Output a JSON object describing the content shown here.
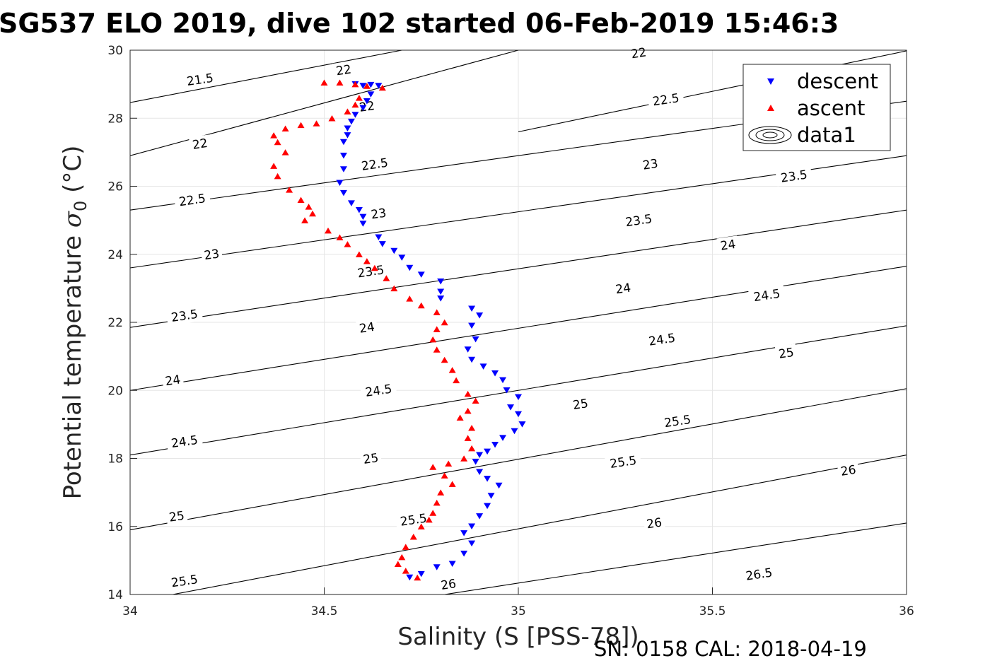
{
  "chart_data": {
    "type": "scatter",
    "title": "SG537 ELO 2019, dive 102 started 06-Feb-2019 15:46:3",
    "xlabel": "Salinity (S [PSS-78])",
    "ylabel_main": "Potential temperature ",
    "ylabel_sigma": "σ",
    "ylabel_sub": "0",
    "ylabel_unit": " (°C)",
    "footer": "SN: 0158  CAL: 2018-04-19",
    "xlim": [
      34,
      36
    ],
    "ylim": [
      14,
      30
    ],
    "x_ticks": [
      "34",
      "34.5",
      "35",
      "35.5",
      "36"
    ],
    "y_ticks": [
      "14",
      "16",
      "18",
      "20",
      "22",
      "24",
      "26",
      "28",
      "30"
    ],
    "grid": true,
    "legend_position": "top-right",
    "legend": [
      "descent",
      "ascent",
      "data1"
    ],
    "series": [
      {
        "name": "descent",
        "marker": "triangle-down",
        "color": "#0000ff",
        "points": [
          [
            34.58,
            29.0
          ],
          [
            34.6,
            28.95
          ],
          [
            34.62,
            28.98
          ],
          [
            34.64,
            28.95
          ],
          [
            34.62,
            28.7
          ],
          [
            34.61,
            28.5
          ],
          [
            34.6,
            28.3
          ],
          [
            34.58,
            28.1
          ],
          [
            34.57,
            27.9
          ],
          [
            34.56,
            27.7
          ],
          [
            34.56,
            27.5
          ],
          [
            34.55,
            27.3
          ],
          [
            34.55,
            26.9
          ],
          [
            34.55,
            26.5
          ],
          [
            34.54,
            26.1
          ],
          [
            34.55,
            25.8
          ],
          [
            34.57,
            25.5
          ],
          [
            34.59,
            25.3
          ],
          [
            34.6,
            25.1
          ],
          [
            34.6,
            24.9
          ],
          [
            34.64,
            24.5
          ],
          [
            34.65,
            24.3
          ],
          [
            34.68,
            24.1
          ],
          [
            34.7,
            23.9
          ],
          [
            34.72,
            23.6
          ],
          [
            34.75,
            23.4
          ],
          [
            34.8,
            23.2
          ],
          [
            34.8,
            22.9
          ],
          [
            34.8,
            22.7
          ],
          [
            34.88,
            22.4
          ],
          [
            34.9,
            22.2
          ],
          [
            34.88,
            21.9
          ],
          [
            34.89,
            21.5
          ],
          [
            34.87,
            21.2
          ],
          [
            34.88,
            20.9
          ],
          [
            34.91,
            20.7
          ],
          [
            34.94,
            20.5
          ],
          [
            34.96,
            20.3
          ],
          [
            34.97,
            20.0
          ],
          [
            35.0,
            19.8
          ],
          [
            34.98,
            19.5
          ],
          [
            35.0,
            19.3
          ],
          [
            35.01,
            19.0
          ],
          [
            34.99,
            18.8
          ],
          [
            34.96,
            18.6
          ],
          [
            34.94,
            18.4
          ],
          [
            34.92,
            18.2
          ],
          [
            34.9,
            18.1
          ],
          [
            34.89,
            17.9
          ],
          [
            34.9,
            17.6
          ],
          [
            34.92,
            17.4
          ],
          [
            34.95,
            17.2
          ],
          [
            34.93,
            16.9
          ],
          [
            34.92,
            16.6
          ],
          [
            34.9,
            16.3
          ],
          [
            34.88,
            16.0
          ],
          [
            34.86,
            15.8
          ],
          [
            34.88,
            15.5
          ],
          [
            34.86,
            15.2
          ],
          [
            34.83,
            14.9
          ],
          [
            34.79,
            14.8
          ],
          [
            34.75,
            14.6
          ],
          [
            34.72,
            14.5
          ]
        ]
      },
      {
        "name": "ascent",
        "marker": "triangle-up",
        "color": "#ff0000",
        "points": [
          [
            34.5,
            29.05
          ],
          [
            34.54,
            29.05
          ],
          [
            34.58,
            29.0
          ],
          [
            34.61,
            28.95
          ],
          [
            34.65,
            28.9
          ],
          [
            34.59,
            28.6
          ],
          [
            34.58,
            28.4
          ],
          [
            34.56,
            28.2
          ],
          [
            34.52,
            28.0
          ],
          [
            34.48,
            27.85
          ],
          [
            34.44,
            27.8
          ],
          [
            34.4,
            27.7
          ],
          [
            34.37,
            27.5
          ],
          [
            34.38,
            27.3
          ],
          [
            34.4,
            27.0
          ],
          [
            34.37,
            26.6
          ],
          [
            34.38,
            26.3
          ],
          [
            34.41,
            25.9
          ],
          [
            34.44,
            25.6
          ],
          [
            34.46,
            25.4
          ],
          [
            34.47,
            25.2
          ],
          [
            34.45,
            25.0
          ],
          [
            34.51,
            24.7
          ],
          [
            34.54,
            24.5
          ],
          [
            34.56,
            24.3
          ],
          [
            34.59,
            24.0
          ],
          [
            34.61,
            23.8
          ],
          [
            34.63,
            23.6
          ],
          [
            34.66,
            23.3
          ],
          [
            34.68,
            23.0
          ],
          [
            34.72,
            22.7
          ],
          [
            34.75,
            22.5
          ],
          [
            34.79,
            22.3
          ],
          [
            34.81,
            22.0
          ],
          [
            34.79,
            21.8
          ],
          [
            34.78,
            21.5
          ],
          [
            34.79,
            21.2
          ],
          [
            34.81,
            20.9
          ],
          [
            34.83,
            20.6
          ],
          [
            34.84,
            20.3
          ],
          [
            34.87,
            19.9
          ],
          [
            34.89,
            19.7
          ],
          [
            34.87,
            19.4
          ],
          [
            34.85,
            19.2
          ],
          [
            34.88,
            18.9
          ],
          [
            34.87,
            18.6
          ],
          [
            34.88,
            18.3
          ],
          [
            34.86,
            18.0
          ],
          [
            34.82,
            17.85
          ],
          [
            34.78,
            17.75
          ],
          [
            34.81,
            17.5
          ],
          [
            34.83,
            17.25
          ],
          [
            34.8,
            17.0
          ],
          [
            34.79,
            16.7
          ],
          [
            34.78,
            16.4
          ],
          [
            34.77,
            16.2
          ],
          [
            34.75,
            16.0
          ],
          [
            34.73,
            15.7
          ],
          [
            34.71,
            15.4
          ],
          [
            34.7,
            15.1
          ],
          [
            34.69,
            14.9
          ],
          [
            34.71,
            14.7
          ],
          [
            34.74,
            14.5
          ]
        ]
      }
    ],
    "density_contours": {
      "name": "data1",
      "levels": [
        "21.5",
        "22",
        "22.5",
        "23",
        "23.5",
        "24",
        "24.5",
        "25",
        "25.5",
        "26",
        "26.5"
      ],
      "lines": [
        {
          "level": "21.5",
          "x": [
            34.0,
            34.7
          ],
          "y": [
            28.46,
            30.0
          ]
        },
        {
          "level": "22",
          "x": [
            34.0,
            35.0
          ],
          "y": [
            26.9,
            30.0
          ]
        },
        {
          "level": "22",
          "x": [
            35.0,
            36.0
          ],
          "y": [
            27.6,
            29.98
          ]
        },
        {
          "level": "22.5",
          "x": [
            34.0,
            36.0
          ],
          "y": [
            25.3,
            28.5
          ]
        },
        {
          "level": "23",
          "x": [
            34.0,
            36.0
          ],
          "y": [
            23.6,
            26.9
          ]
        },
        {
          "level": "23.5",
          "x": [
            34.0,
            36.0
          ],
          "y": [
            21.85,
            25.3
          ]
        },
        {
          "level": "24",
          "x": [
            34.0,
            36.0
          ],
          "y": [
            20.0,
            23.65
          ]
        },
        {
          "level": "24.5",
          "x": [
            34.0,
            36.0
          ],
          "y": [
            18.1,
            21.9
          ]
        },
        {
          "level": "25",
          "x": [
            34.0,
            36.0
          ],
          "y": [
            15.9,
            20.05
          ]
        },
        {
          "level": "25.5",
          "x": [
            34.11,
            36.0
          ],
          "y": [
            14.0,
            18.1
          ]
        },
        {
          "level": "26",
          "x": [
            34.81,
            36.0
          ],
          "y": [
            14.0,
            16.1
          ]
        }
      ],
      "labels": [
        {
          "text": "21.5",
          "x": 34.18,
          "y": 29.14
        },
        {
          "text": "22",
          "x": 34.55,
          "y": 29.42
        },
        {
          "text": "22",
          "x": 35.31,
          "y": 29.92
        },
        {
          "text": "22",
          "x": 34.61,
          "y": 28.35
        },
        {
          "text": "22",
          "x": 34.18,
          "y": 27.25
        },
        {
          "text": "22.5",
          "x": 34.63,
          "y": 26.65
        },
        {
          "text": "22.5",
          "x": 35.38,
          "y": 28.55
        },
        {
          "text": "22.5",
          "x": 34.16,
          "y": 25.6
        },
        {
          "text": "23",
          "x": 34.64,
          "y": 25.2
        },
        {
          "text": "23",
          "x": 35.34,
          "y": 26.65
        },
        {
          "text": "23",
          "x": 34.21,
          "y": 24.0
        },
        {
          "text": "23.5",
          "x": 35.31,
          "y": 25.0
        },
        {
          "text": "23.5",
          "x": 35.71,
          "y": 26.3
        },
        {
          "text": "23.5",
          "x": 34.14,
          "y": 22.2
        },
        {
          "text": "23.5",
          "x": 34.62,
          "y": 23.5
        },
        {
          "text": "24",
          "x": 35.54,
          "y": 24.28
        },
        {
          "text": "24",
          "x": 34.61,
          "y": 21.85
        },
        {
          "text": "24",
          "x": 34.11,
          "y": 20.3
        },
        {
          "text": "24",
          "x": 35.27,
          "y": 23.0
        },
        {
          "text": "24.5",
          "x": 34.64,
          "y": 20.0
        },
        {
          "text": "24.5",
          "x": 35.37,
          "y": 21.5
        },
        {
          "text": "24.5",
          "x": 35.64,
          "y": 22.8
        },
        {
          "text": "24.5",
          "x": 34.14,
          "y": 18.5
        },
        {
          "text": "25",
          "x": 35.16,
          "y": 19.6
        },
        {
          "text": "25",
          "x": 35.69,
          "y": 21.1
        },
        {
          "text": "25",
          "x": 34.62,
          "y": 18.0
        },
        {
          "text": "25",
          "x": 34.12,
          "y": 16.3
        },
        {
          "text": "25.5",
          "x": 35.41,
          "y": 19.1
        },
        {
          "text": "25.5",
          "x": 34.14,
          "y": 14.4
        },
        {
          "text": "25.5",
          "x": 35.27,
          "y": 17.9
        },
        {
          "text": "25.5",
          "x": 34.73,
          "y": 16.2
        },
        {
          "text": "26",
          "x": 35.85,
          "y": 17.65
        },
        {
          "text": "26",
          "x": 35.35,
          "y": 16.1
        },
        {
          "text": "26",
          "x": 34.82,
          "y": 14.3
        },
        {
          "text": "26.5",
          "x": 35.62,
          "y": 14.6
        }
      ]
    }
  }
}
